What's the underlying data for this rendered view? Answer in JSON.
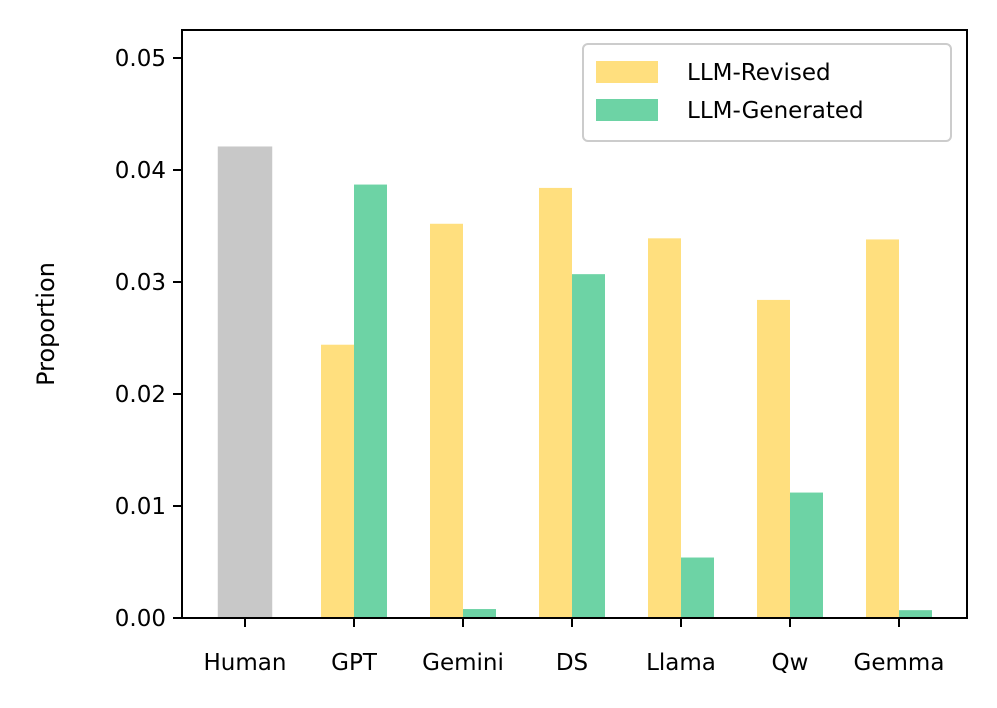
{
  "chart_data": {
    "type": "bar",
    "title": "",
    "xlabel": "",
    "ylabel": "Proportion",
    "ylim": [
      0,
      0.0525
    ],
    "yticks": [
      "0.00",
      "0.01",
      "0.02",
      "0.03",
      "0.04",
      "0.05"
    ],
    "ytick_values": [
      0,
      0.01,
      0.02,
      0.03,
      0.04,
      0.05
    ],
    "categories": [
      "Human",
      "GPT",
      "Gemini",
      "DS",
      "Llama",
      "Qw",
      "Gemma"
    ],
    "human": {
      "name": "Human",
      "value": 0.0421,
      "color": "#c8c8c8"
    },
    "series": [
      {
        "name": "LLM-Revised",
        "color": "#ffdf7e",
        "values": [
          null,
          0.0244,
          0.0352,
          0.0384,
          0.0339,
          0.0284,
          0.0338
        ]
      },
      {
        "name": "LLM-Generated",
        "color": "#6dd3a5",
        "values": [
          null,
          0.0387,
          0.0008,
          0.0307,
          0.0054,
          0.0112,
          0.0007
        ]
      }
    ],
    "legend_position": "top-right",
    "grid": false
  }
}
